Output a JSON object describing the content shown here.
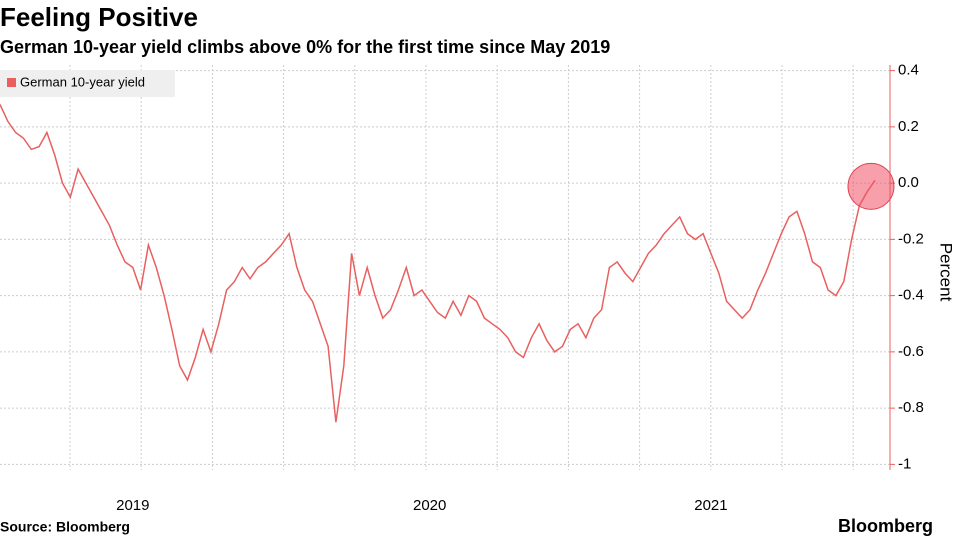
{
  "chart_data": {
    "type": "line",
    "title": "Feeling Positive",
    "subtitle": "German 10-year yield climbs above 0% for the first time since May 2019",
    "y_label": "Percent",
    "source": "Source: Bloomberg",
    "brand": "Bloomberg",
    "categories": [
      null,
      null,
      null,
      null,
      null,
      null,
      null,
      null,
      null,
      null,
      null,
      null,
      null,
      null,
      null,
      null,
      null,
      "2019",
      null,
      null,
      null,
      null,
      null,
      null,
      null,
      null,
      null,
      null,
      null,
      null,
      null,
      null,
      null,
      null,
      null,
      null,
      null,
      null,
      null,
      null,
      null,
      null,
      null,
      null,
      null,
      null,
      null,
      null,
      null,
      null,
      null,
      null,
      null,
      null,
      null,
      "2020",
      null,
      null,
      null,
      null,
      null,
      null,
      null,
      null,
      null,
      null,
      null,
      null,
      null,
      null,
      null,
      null,
      null,
      null,
      null,
      null,
      null,
      null,
      null,
      null,
      null,
      null,
      null,
      null,
      null,
      null,
      null,
      null,
      null,
      null,
      null,
      "2021",
      null,
      null,
      null,
      null,
      null,
      null,
      null,
      null,
      null,
      null,
      null,
      null,
      null,
      null,
      null,
      null,
      null,
      null,
      null,
      null,
      null
    ],
    "series": [
      {
        "name": "German 10-year yield",
        "color": "#e8605f",
        "values": [
          0.28,
          0.22,
          0.18,
          0.16,
          0.12,
          0.13,
          0.18,
          0.1,
          0.0,
          -0.05,
          0.05,
          0.0,
          -0.05,
          -0.1,
          -0.15,
          -0.22,
          -0.28,
          -0.3,
          -0.38,
          -0.22,
          -0.3,
          -0.4,
          -0.52,
          -0.65,
          -0.7,
          -0.62,
          -0.52,
          -0.6,
          -0.5,
          -0.38,
          -0.35,
          -0.3,
          -0.34,
          -0.3,
          -0.28,
          -0.25,
          -0.22,
          -0.18,
          -0.3,
          -0.38,
          -0.42,
          -0.5,
          -0.58,
          -0.85,
          -0.65,
          -0.25,
          -0.4,
          -0.3,
          -0.4,
          -0.48,
          -0.45,
          -0.38,
          -0.3,
          -0.4,
          -0.38,
          -0.42,
          -0.46,
          -0.48,
          -0.42,
          -0.47,
          -0.4,
          -0.42,
          -0.48,
          -0.5,
          -0.52,
          -0.55,
          -0.6,
          -0.62,
          -0.55,
          -0.5,
          -0.56,
          -0.6,
          -0.58,
          -0.52,
          -0.5,
          -0.55,
          -0.48,
          -0.45,
          -0.3,
          -0.28,
          -0.32,
          -0.35,
          -0.3,
          -0.25,
          -0.22,
          -0.18,
          -0.15,
          -0.12,
          -0.18,
          -0.2,
          -0.18,
          -0.25,
          -0.32,
          -0.42,
          -0.45,
          -0.48,
          -0.45,
          -0.38,
          -0.32,
          -0.25,
          -0.18,
          -0.12,
          -0.1,
          -0.18,
          -0.28,
          -0.3,
          -0.38,
          -0.4,
          -0.35,
          -0.2,
          -0.08,
          -0.03,
          0.01
        ]
      }
    ],
    "ylim": [
      -1.02,
      0.42
    ],
    "yticks": [
      0.4,
      0.2,
      {
        "value": 0,
        "label": "0.0"
      },
      -0.2,
      -0.4,
      -0.6,
      -0.8,
      -1.0
    ],
    "grid": true
  }
}
